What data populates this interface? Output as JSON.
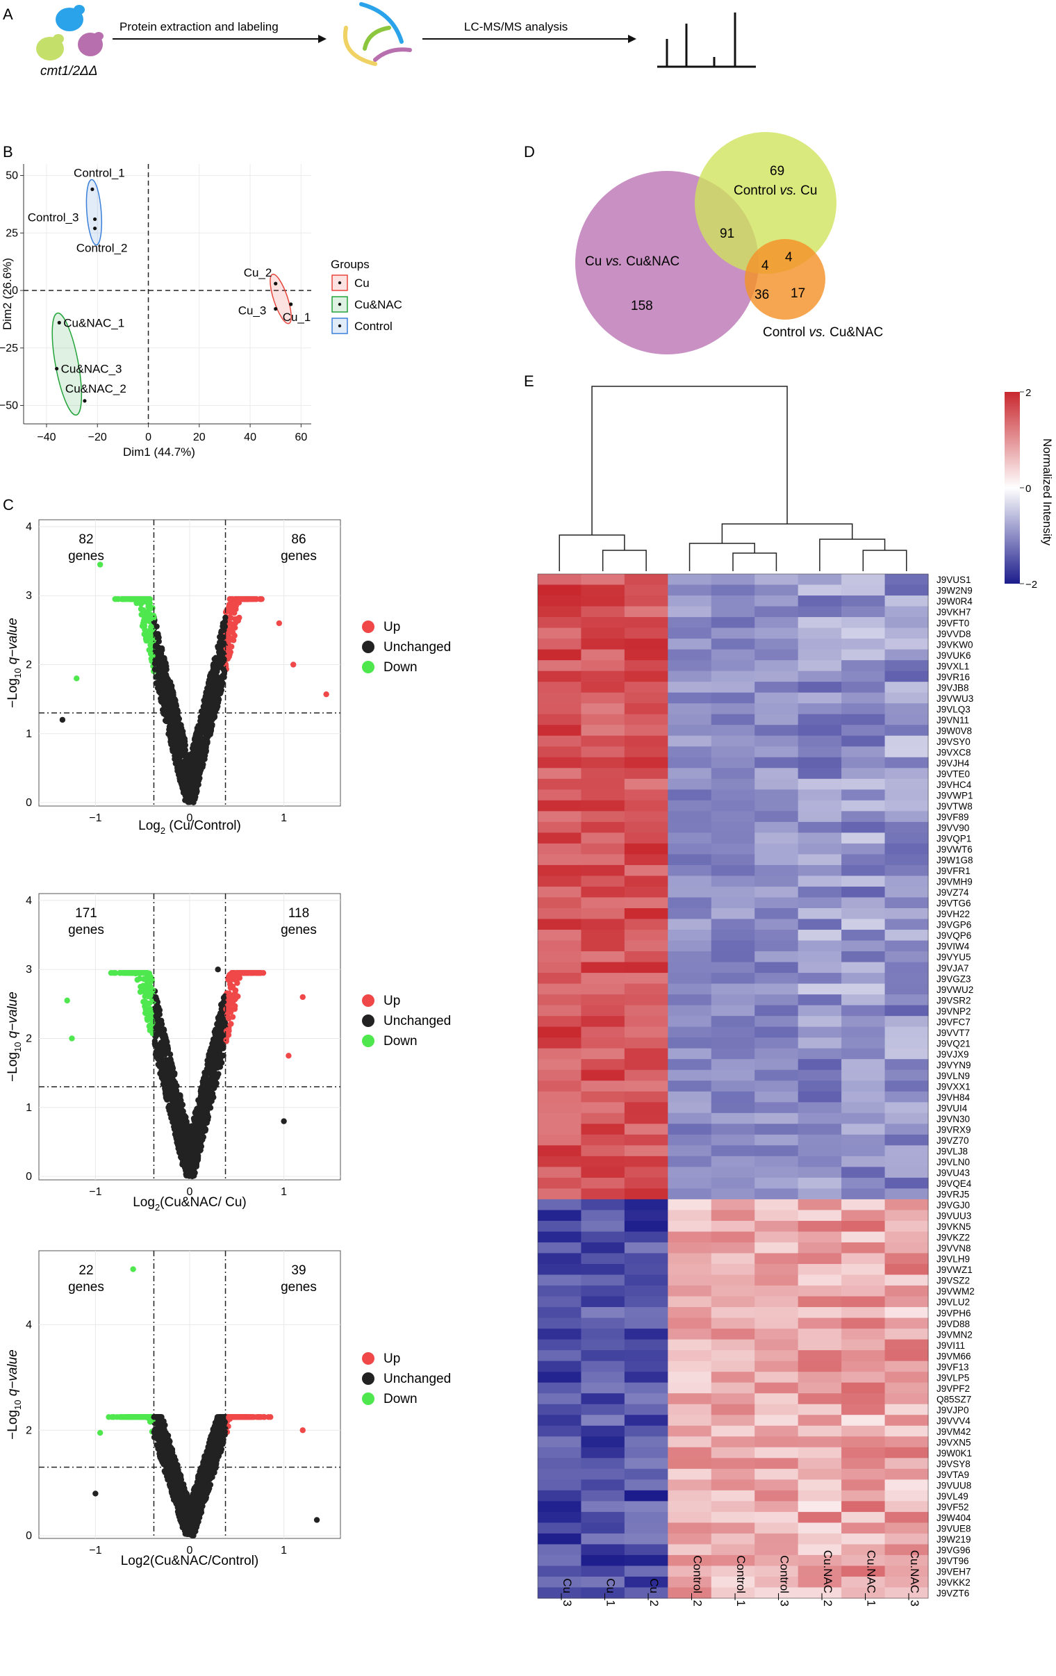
{
  "panels": {
    "a": "A",
    "b": "B",
    "c": "C",
    "d": "D",
    "e": "E"
  },
  "workflow": {
    "strain_label": "cmt1/2ΔΔ",
    "step1": "Protein extraction and labeling",
    "step2": "LC-MS/MS analysis"
  },
  "pca": {
    "xlabel": "Dim1 (44.7%)",
    "ylabel": "Dim2 (26.6%)",
    "xticks": [
      -40,
      -20,
      0,
      20,
      40,
      60
    ],
    "yticks": [
      50,
      25,
      0,
      -25,
      -50
    ],
    "legend_title": "Groups",
    "legend": [
      {
        "name": "Cu",
        "color": "#e8453c"
      },
      {
        "name": "Cu&NAC",
        "color": "#22a33a"
      },
      {
        "name": "Control",
        "color": "#3a7fd9"
      }
    ],
    "points": [
      {
        "label": "Control_1",
        "x": -22,
        "y": 44,
        "group": "Control"
      },
      {
        "label": "Control_3",
        "x": -21,
        "y": 31,
        "group": "Control"
      },
      {
        "label": "Control_2",
        "x": -21,
        "y": 27,
        "group": "Control"
      },
      {
        "label": "Cu_2",
        "x": 50,
        "y": 3,
        "group": "Cu"
      },
      {
        "label": "Cu_3",
        "x": 50,
        "y": -8,
        "group": "Cu"
      },
      {
        "label": "Cu_1",
        "x": 56,
        "y": -6,
        "group": "Cu"
      },
      {
        "label": "Cu&NAC_1",
        "x": -35,
        "y": -14,
        "group": "Cu&NAC"
      },
      {
        "label": "Cu&NAC_3",
        "x": -36,
        "y": -34,
        "group": "Cu&NAC"
      },
      {
        "label": "Cu&NAC_2",
        "x": -25,
        "y": -48,
        "group": "Cu&NAC"
      }
    ]
  },
  "venn": {
    "sets": [
      {
        "name": "Cu vs. Cu&NAC",
        "color": "#c07cb8"
      },
      {
        "name": "Control vs. Cu",
        "color": "#cfe35a"
      },
      {
        "name": "Control vs. Cu&NAC",
        "color": "#f4922a"
      }
    ],
    "set_labels": {
      "cucunac_a": "Cu ",
      "cucunac_vs": "vs.",
      "cucunac_b": " Cu&NAC",
      "ctrlcu_a": "Control ",
      "ctrlcu_vs": "vs.",
      "ctrlcu_b": " Cu",
      "ctrlnac_a": "Control ",
      "ctrlnac_vs": "vs.",
      "ctrlnac_b": " Cu&NAC"
    },
    "counts": {
      "only_cu_cunac": "158",
      "only_ctrl_cu": "69",
      "only_ctrl_cunac": "17",
      "cu_cunac_and_ctrl_cu": "91",
      "all_three": "4",
      "ctrl_cu_and_ctrl_cunac": "4",
      "cu_cunac_and_ctrl_cunac": "36"
    }
  },
  "volcano_legend": {
    "up": "Up",
    "unchanged": "Unchanged",
    "down": "Down",
    "colors": {
      "up": "#f04848",
      "unchanged": "#222222",
      "down": "#4ee84e"
    }
  },
  "volcano_ylabel": {
    "a": "−Log",
    "sub": "10",
    "b": " q−value"
  },
  "chart_data": [
    {
      "type": "scatter",
      "name": "volcano-cu-control",
      "title": "",
      "xlabel_a": "Log",
      "xlabel_sub": "2",
      "xlabel_b": " (Cu/Control)",
      "xlim": [
        -1.6,
        1.6
      ],
      "ylim": [
        -0.05,
        4.1
      ],
      "xticks": [
        -1,
        0,
        1
      ],
      "yticks": [
        0,
        1,
        2,
        3,
        4
      ],
      "fc_threshold": 0.38,
      "q_threshold": 1.3,
      "down_count": "82",
      "up_count": "86",
      "genes_word": "genes",
      "extremes": [
        {
          "x": -1.35,
          "y": 1.2,
          "c": "unchanged"
        },
        {
          "x": -1.2,
          "y": 1.8,
          "c": "down"
        },
        {
          "x": -0.95,
          "y": 3.45,
          "c": "down"
        },
        {
          "x": 1.45,
          "y": 1.57,
          "c": "up"
        },
        {
          "x": 0.95,
          "y": 2.6,
          "c": "up"
        },
        {
          "x": 1.1,
          "y": 2.0,
          "c": "up"
        }
      ]
    },
    {
      "type": "scatter",
      "name": "volcano-cunac-cu",
      "title": "",
      "xlabel_a": "Log",
      "xlabel_sub": "2",
      "xlabel_b": "(Cu&NAC/ Cu)",
      "xlim": [
        -1.6,
        1.6
      ],
      "ylim": [
        -0.05,
        4.1
      ],
      "xticks": [
        -1,
        0,
        1
      ],
      "yticks": [
        0,
        1,
        2,
        3,
        4
      ],
      "fc_threshold": 0.38,
      "q_threshold": 1.3,
      "down_count": "171",
      "up_count": "118",
      "genes_word": "genes",
      "extremes": [
        {
          "x": -1.3,
          "y": 2.55,
          "c": "down"
        },
        {
          "x": -1.25,
          "y": 2.0,
          "c": "down"
        },
        {
          "x": 1.2,
          "y": 2.6,
          "c": "up"
        },
        {
          "x": 1.05,
          "y": 1.75,
          "c": "up"
        },
        {
          "x": 0.3,
          "y": 3.0,
          "c": "unchanged"
        },
        {
          "x": 1.0,
          "y": 0.8,
          "c": "unchanged"
        }
      ]
    },
    {
      "type": "scatter",
      "name": "volcano-cunac-control",
      "title": "",
      "xlabel_a": "Log2(Cu&NAC/Control)",
      "xlabel_sub": "",
      "xlabel_b": "",
      "xlim": [
        -1.6,
        1.6
      ],
      "ylim": [
        -0.05,
        5.4
      ],
      "xticks": [
        -1,
        0,
        1
      ],
      "yticks": [
        0,
        2,
        4
      ],
      "fc_threshold": 0.38,
      "q_threshold": 1.3,
      "down_count": "22",
      "up_count": "39",
      "genes_word": "genes",
      "extremes": [
        {
          "x": -0.6,
          "y": 5.05,
          "c": "down"
        },
        {
          "x": 1.35,
          "y": 0.3,
          "c": "unchanged"
        },
        {
          "x": 1.2,
          "y": 2.0,
          "c": "up"
        },
        {
          "x": -1.0,
          "y": 0.8,
          "c": "unchanged"
        },
        {
          "x": -0.95,
          "y": 1.95,
          "c": "down"
        }
      ]
    },
    {
      "type": "heatmap",
      "name": "heatmap",
      "columns": [
        "Cu_3",
        "Cu_1",
        "Cu_2",
        "Control_2",
        "Control_1",
        "Control_3",
        "Cu.NAC_2",
        "Cu.NAC_1",
        "Cu.NAC_3"
      ],
      "rows": [
        "J9VUS1",
        "J9W2N9",
        "J9W0R4",
        "J9VKH7",
        "J9VFT0",
        "J9VVD8",
        "J9VKW0",
        "J9VUK6",
        "J9VXL1",
        "J9VR16",
        "J9VJB8",
        "J9VWU3",
        "J9VLQ3",
        "J9VN11",
        "J9W0V8",
        "J9VSY0",
        "J9VXC8",
        "J9VJH4",
        "J9VTE0",
        "J9VHC4",
        "J9VWP1",
        "J9VTW8",
        "J9VF89",
        "J9VV90",
        "J9VQP1",
        "J9VWT6",
        "J9W1G8",
        "J9VFR1",
        "J9VMH9",
        "J9VZ74",
        "J9VTG6",
        "J9VH22",
        "J9VGP6",
        "J9VQP6",
        "J9VIW4",
        "J9VYU5",
        "J9VJA7",
        "J9VGZ3",
        "J9VWU2",
        "J9VSR2",
        "J9VNP2",
        "J9VFC7",
        "J9VVT7",
        "J9VQ21",
        "J9VJX9",
        "J9VYN9",
        "J9VLN9",
        "J9VXX1",
        "J9VH84",
        "J9VUI4",
        "J9VN30",
        "J9VRX9",
        "J9VZ70",
        "J9VLJ8",
        "J9VLN0",
        "J9VU43",
        "J9VQE4",
        "J9VRJ5",
        "J9VGJ0",
        "J9VUU3",
        "J9VKN5",
        "J9VKZ2",
        "J9VVN8",
        "J9VLH9",
        "J9VWZ1",
        "J9VSZ2",
        "J9VWM2",
        "J9VLU2",
        "J9VPH6",
        "J9VD88",
        "J9VMN2",
        "J9VI11",
        "J9VM66",
        "J9VF13",
        "J9VLP5",
        "J9VPF2",
        "Q85SZ7",
        "J9VJP0",
        "J9VVV4",
        "J9VM42",
        "J9VXN5",
        "J9W0K1",
        "J9VSY8",
        "J9VTA9",
        "J9VUU8",
        "J9VL49",
        "J9VF52",
        "J9W404",
        "J9VUE8",
        "J9W219",
        "J9VG96",
        "J9VT96",
        "J9VEH7",
        "J9VKK2",
        "J9VZT6"
      ],
      "cluster_split_row": 58,
      "color_scale": {
        "min": -2,
        "mid": 0,
        "max": 2,
        "low": "#1c1c8c",
        "midcolor": "#ffffff",
        "high": "#c8282e"
      },
      "legend_title": "Normalized Intensity",
      "legend_ticks": [
        "2",
        "0",
        "−2"
      ]
    }
  ]
}
